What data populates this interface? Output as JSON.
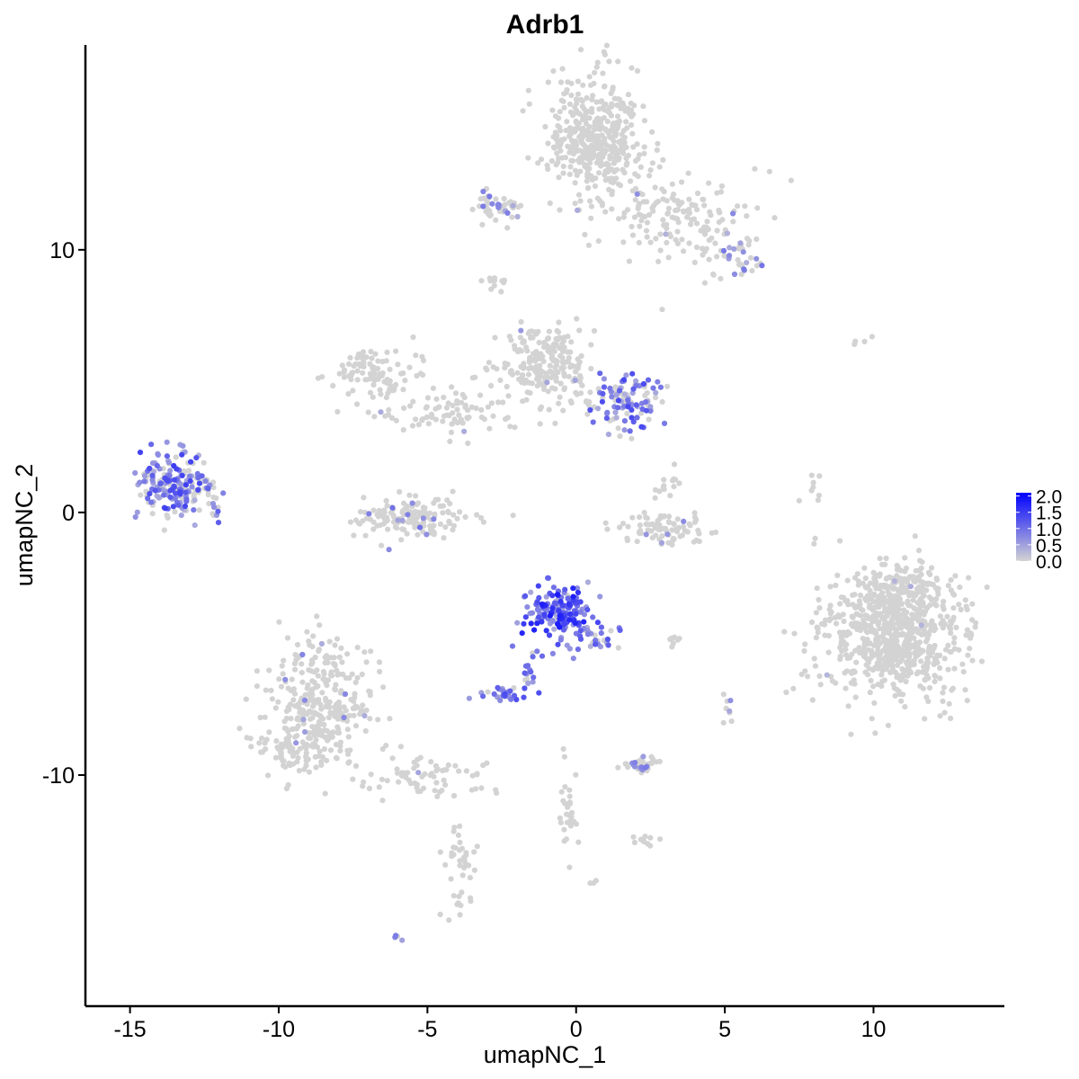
{
  "chart_data": {
    "type": "scatter",
    "title": "Adrb1",
    "xlabel": "umapNC_1",
    "ylabel": "umapNC_2",
    "xlim": [
      -16.5,
      14.4
    ],
    "ylim": [
      -18.8,
      17.8
    ],
    "x_ticks": [
      -15,
      -10,
      -5,
      0,
      5,
      10
    ],
    "x_tick_labels": [
      "-15",
      "-10",
      "-5",
      "0",
      "5",
      "10"
    ],
    "y_ticks": [
      -10,
      0,
      10
    ],
    "y_tick_labels": [
      "-10",
      "0",
      "10"
    ],
    "grid": false,
    "legend_placement": "right",
    "color_scale": {
      "low_color": "#d3d3d3",
      "high_color": "#0000ff",
      "min": 0,
      "max": 2.1,
      "breaks": [
        2.0,
        1.5,
        1.0,
        0.5,
        0.0
      ],
      "break_labels": [
        "2.0",
        "1.5",
        "1.0",
        "0.5",
        "0.0"
      ]
    },
    "clusters": [
      {
        "cx": 0.7,
        "cy": 14.3,
        "sx": 0.8,
        "sy": 1.2,
        "n": 420,
        "expr_frac": 0.01,
        "expr_max": 0.6
      },
      {
        "cx": 3.5,
        "cy": 11.2,
        "sx": 1.2,
        "sy": 0.9,
        "n": 160,
        "expr_frac": 0.03,
        "expr_max": 0.8
      },
      {
        "cx": 5.5,
        "cy": 9.6,
        "sx": 0.4,
        "sy": 0.3,
        "n": 30,
        "expr_frac": 0.3,
        "expr_max": 1.0
      },
      {
        "cx": -2.6,
        "cy": 11.6,
        "sx": 0.4,
        "sy": 0.3,
        "n": 50,
        "expr_frac": 0.15,
        "expr_max": 0.9
      },
      {
        "cx": -2.8,
        "cy": 8.8,
        "sx": 0.3,
        "sy": 0.15,
        "n": 12,
        "expr_frac": 0,
        "expr_max": 0
      },
      {
        "cx": -0.9,
        "cy": 5.6,
        "sx": 0.8,
        "sy": 0.8,
        "n": 220,
        "expr_frac": 0.02,
        "expr_max": 0.6
      },
      {
        "cx": 1.7,
        "cy": 4.2,
        "sx": 0.6,
        "sy": 0.6,
        "n": 110,
        "expr_frac": 0.65,
        "expr_max": 1.4
      },
      {
        "cx": -6.8,
        "cy": 5.3,
        "sx": 0.7,
        "sy": 0.6,
        "n": 90,
        "expr_frac": 0.02,
        "expr_max": 0.6
      },
      {
        "cx": -4.2,
        "cy": 3.8,
        "sx": 1.2,
        "sy": 0.5,
        "n": 90,
        "expr_frac": 0.02,
        "expr_max": 0.6
      },
      {
        "cx": -5.5,
        "cy": -0.2,
        "sx": 0.9,
        "sy": 0.4,
        "n": 150,
        "expr_frac": 0.12,
        "expr_max": 1.0
      },
      {
        "cx": -13.6,
        "cy": 1.1,
        "sx": 0.6,
        "sy": 0.6,
        "n": 170,
        "expr_frac": 0.7,
        "expr_max": 1.5
      },
      {
        "cx": -12.4,
        "cy": 0.6,
        "sx": 0.3,
        "sy": 0.5,
        "n": 30,
        "expr_frac": 0.5,
        "expr_max": 1.2
      },
      {
        "cx": 2.9,
        "cy": -0.6,
        "sx": 0.7,
        "sy": 0.3,
        "n": 80,
        "expr_frac": 0.03,
        "expr_max": 0.8
      },
      {
        "cx": 3.1,
        "cy": 1.0,
        "sx": 0.25,
        "sy": 0.3,
        "n": 14,
        "expr_frac": 0.1,
        "expr_max": 0.8
      },
      {
        "cx": 10.7,
        "cy": -4.8,
        "sx": 1.2,
        "sy": 1.2,
        "n": 700,
        "expr_frac": 0.005,
        "expr_max": 0.5
      },
      {
        "cx": 10.9,
        "cy": -3.0,
        "sx": 0.8,
        "sy": 0.6,
        "n": 140,
        "expr_frac": 0,
        "expr_max": 0
      },
      {
        "cx": -0.6,
        "cy": -3.8,
        "sx": 0.5,
        "sy": 0.5,
        "n": 170,
        "expr_frac": 0.95,
        "expr_max": 1.85
      },
      {
        "cx": 0.6,
        "cy": -4.8,
        "sx": 0.4,
        "sy": 0.3,
        "n": 30,
        "expr_frac": 0.8,
        "expr_max": 1.3
      },
      {
        "cx": -1.6,
        "cy": -6.0,
        "sx": 0.15,
        "sy": 0.4,
        "n": 16,
        "expr_frac": 0.9,
        "expr_max": 1.2
      },
      {
        "cx": -2.3,
        "cy": -6.9,
        "sx": 0.4,
        "sy": 0.12,
        "n": 30,
        "expr_frac": 0.9,
        "expr_max": 1.4
      },
      {
        "cx": -8.6,
        "cy": -7.2,
        "sx": 0.8,
        "sy": 1.2,
        "n": 300,
        "expr_frac": 0.02,
        "expr_max": 0.8
      },
      {
        "cx": -9.6,
        "cy": -9.0,
        "sx": 0.6,
        "sy": 0.4,
        "n": 70,
        "expr_frac": 0.01,
        "expr_max": 0.6
      },
      {
        "cx": -5.2,
        "cy": -10.0,
        "sx": 1.2,
        "sy": 0.4,
        "n": 70,
        "expr_frac": 0.02,
        "expr_max": 0.6
      },
      {
        "cx": -3.9,
        "cy": -13.6,
        "sx": 0.3,
        "sy": 1.0,
        "n": 40,
        "expr_frac": 0,
        "expr_max": 0
      },
      {
        "cx": 2.2,
        "cy": -9.6,
        "sx": 0.4,
        "sy": 0.15,
        "n": 35,
        "expr_frac": 0.35,
        "expr_max": 1.0
      },
      {
        "cx": 2.3,
        "cy": -12.5,
        "sx": 0.25,
        "sy": 0.1,
        "n": 10,
        "expr_frac": 0,
        "expr_max": 0
      },
      {
        "cx": -0.3,
        "cy": -11.0,
        "sx": 0.2,
        "sy": 1.0,
        "n": 30,
        "expr_frac": 0,
        "expr_max": 0
      },
      {
        "cx": 5.1,
        "cy": -7.4,
        "sx": 0.1,
        "sy": 0.3,
        "n": 8,
        "expr_frac": 0.3,
        "expr_max": 0.8
      },
      {
        "cx": 3.3,
        "cy": -4.9,
        "sx": 0.2,
        "sy": 0.1,
        "n": 8,
        "expr_frac": 0,
        "expr_max": 0
      },
      {
        "cx": 8.0,
        "cy": 0.1,
        "sx": 0.2,
        "sy": 0.7,
        "n": 10,
        "expr_frac": 0,
        "expr_max": 0
      },
      {
        "cx": 9.6,
        "cy": 6.6,
        "sx": 0.2,
        "sy": 0.1,
        "n": 4,
        "expr_frac": 0,
        "expr_max": 0
      },
      {
        "cx": -6.0,
        "cy": -16.1,
        "sx": 0.1,
        "sy": 0.1,
        "n": 4,
        "expr_frac": 0.9,
        "expr_max": 0.9
      },
      {
        "cx": 0.6,
        "cy": -14.1,
        "sx": 0.1,
        "sy": 0.1,
        "n": 3,
        "expr_frac": 0,
        "expr_max": 0
      }
    ]
  }
}
